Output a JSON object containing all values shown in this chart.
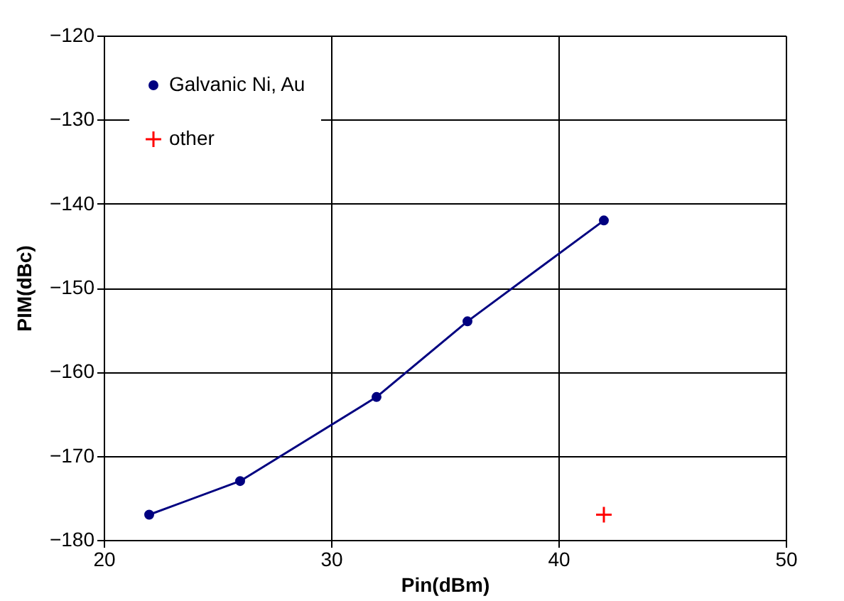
{
  "chart_data": {
    "type": "line",
    "xlabel": "Pin(dBm)",
    "ylabel": "PIM(dBc)",
    "xlim": [
      20,
      50
    ],
    "xticks": [
      20,
      30,
      40,
      50
    ],
    "ylim": [
      -180,
      -120
    ],
    "yticks": [
      -180,
      -170,
      -160,
      -150,
      -140,
      -130,
      -120
    ],
    "grid": true,
    "legend": "top left",
    "series": [
      {
        "name": "Galvanic Ni, Au",
        "marker": "circle",
        "color": "#000080",
        "x": [
          22,
          26,
          32,
          36,
          42
        ],
        "values": [
          -177,
          -173,
          -163,
          -154,
          -142
        ]
      },
      {
        "name": "other",
        "type": "scatter",
        "marker": "cross",
        "color": "#ff0000",
        "x": [
          42
        ],
        "values": [
          -177
        ]
      }
    ]
  }
}
